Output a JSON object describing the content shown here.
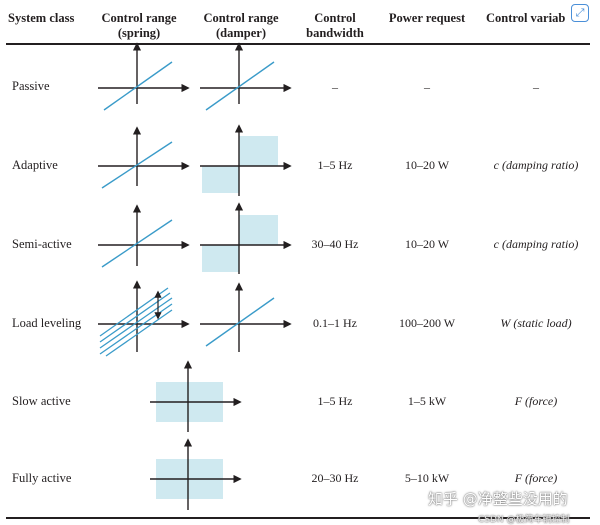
{
  "headers": {
    "system_class": "System class",
    "control_range_spring_1": "Control range",
    "control_range_spring_2": "(spring)",
    "control_range_damper_1": "Control range",
    "control_range_damper_2": "(damper)",
    "control_bandwidth_1": "Control",
    "control_bandwidth_2": "bandwidth",
    "power_request": "Power request",
    "control_variable": "Control variab"
  },
  "rows": [
    {
      "label": "Passive",
      "bandwidth": "–",
      "power": "–",
      "variable": "–"
    },
    {
      "label": "Adaptive",
      "bandwidth": "1–5 Hz",
      "power": "10–20 W",
      "variable": "c (damping ratio)"
    },
    {
      "label": "Semi-active",
      "bandwidth": "30–40 Hz",
      "power": "10–20 W",
      "variable": "c (damping ratio)"
    },
    {
      "label": "Load leveling",
      "bandwidth": "0.1–1 Hz",
      "power": "100–200 W",
      "variable": "W (static load)"
    },
    {
      "label": "Slow active",
      "bandwidth": "1–5 Hz",
      "power": "1–5 kW",
      "variable": "F (force)"
    },
    {
      "label": "Fully active",
      "bandwidth": "20–30 Hz",
      "power": "5–10 kW",
      "variable": "F (force)"
    }
  ],
  "colors": {
    "line_blue": "#3a9bc9",
    "fill_lightblue": "#cfe9f0",
    "ink": "#231f20",
    "icon_blue": "#4a8fd8"
  },
  "icons": {
    "corner": "expand-icon"
  },
  "watermark": {
    "main": "知乎 @净整些没用的",
    "sub": "CSDN @极简车辆控制"
  }
}
